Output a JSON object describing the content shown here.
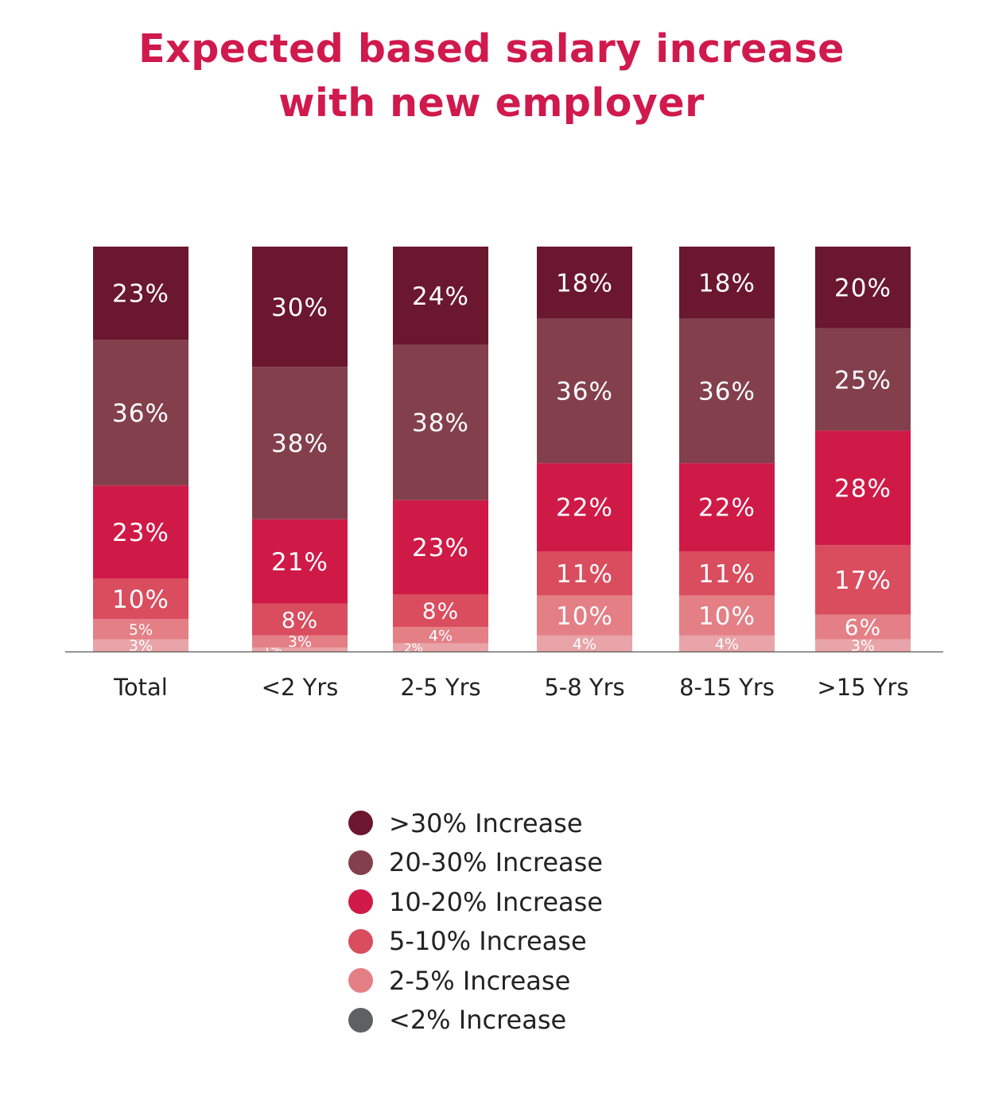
{
  "title": {
    "line1": "Expected based salary increase",
    "line2": "with new employer"
  },
  "colors": {
    "title": "#d0194d",
    "axis": "#555555",
    "category_label": "#222222",
    "segment_label": "#ffffff"
  },
  "chart_data": {
    "type": "bar",
    "stacked": true,
    "orientation": "vertical",
    "title": "Expected based salary increase with new employer",
    "categories": [
      "Total",
      "<2 Yrs",
      "2-5 Yrs",
      "5-8 Yrs",
      "8-15 Yrs",
      ">15 Yrs"
    ],
    "series": [
      {
        "name": "<2% Increase",
        "color": "#e8a4a8",
        "values": [
          3,
          1,
          2,
          4,
          4,
          3
        ]
      },
      {
        "name": "2-5% Increase",
        "color": "#e47f86",
        "values": [
          5,
          3,
          4,
          10,
          10,
          6
        ]
      },
      {
        "name": "5-10% Increase",
        "color": "#d94d5e",
        "values": [
          10,
          8,
          8,
          11,
          11,
          17
        ]
      },
      {
        "name": "10-20% Increase",
        "color": "#cf1a47",
        "values": [
          23,
          21,
          23,
          22,
          22,
          28
        ]
      },
      {
        "name": "20-30% Increase",
        "color": "#83404c",
        "values": [
          36,
          38,
          38,
          36,
          36,
          25
        ]
      },
      {
        "name": ">30% Increase",
        "color": "#6b1730",
        "values": [
          23,
          30,
          24,
          18,
          18,
          20
        ]
      }
    ],
    "legend_position": "bottom-center",
    "grid": false
  },
  "legend": [
    {
      "label": ">30% Increase",
      "color": "#6b1730",
      "icon": "circle-icon"
    },
    {
      "label": "20-30% Increase",
      "color": "#83404c",
      "icon": "circle-icon"
    },
    {
      "label": "10-20% Increase",
      "color": "#cf1a47",
      "icon": "circle-icon"
    },
    {
      "label": "5-10% Increase",
      "color": "#d94d5e",
      "icon": "circle-icon"
    },
    {
      "label": "2-5% Increase",
      "color": "#e47f86",
      "icon": "circle-icon"
    },
    {
      "label": "<2% Increase",
      "color": "#5f6062",
      "icon": "circle-icon"
    }
  ]
}
